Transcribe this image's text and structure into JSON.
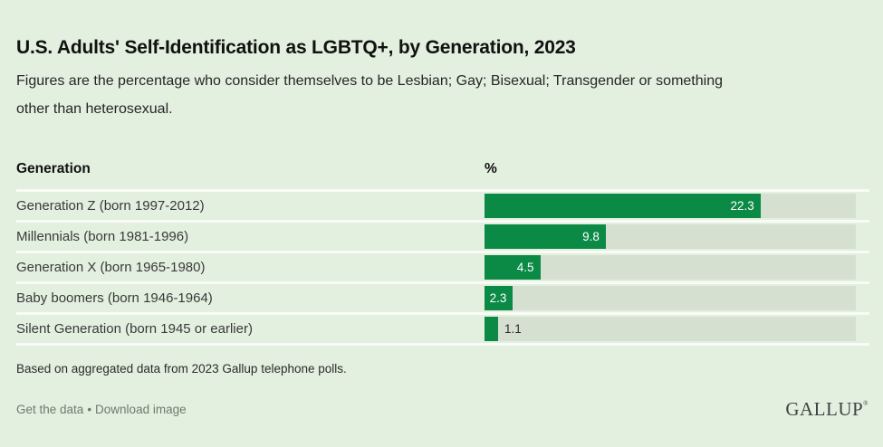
{
  "page": {
    "title": "U.S. Adults' Self-Identification as LGBTQ+, by Generation, 2023",
    "subtitle": {
      "full": "Figures are the percentage who consider themselves to be Lesbian; Gay; Bisexual; Transgender or something other than heterosexual.",
      "line1": "Figures are the percentage who consider themselves to be Lesbian; Gay; Bisexual; Transgender or something",
      "line2": "other than heterosexual."
    },
    "footnote": "Based on aggregated data from 2023 Gallup telephone polls.",
    "links": {
      "get_data": "Get the data",
      "separator": "•",
      "download_image": "Download image"
    },
    "logo": "GALLUP",
    "logo_mark": "®"
  },
  "chart_data": {
    "type": "bar",
    "orientation": "horizontal",
    "title": "U.S. Adults' Self-Identification as LGBTQ+, by Generation, 2023",
    "col_headers": {
      "category": "Generation",
      "value": "%"
    },
    "categories": [
      "Generation Z (born 1997-2012)",
      "Millennials (born 1981-1996)",
      "Generation X (born 1965-1980)",
      "Baby boomers (born 1946-1964)",
      "Silent Generation (born 1945 or earlier)"
    ],
    "values": [
      22.3,
      9.8,
      4.5,
      2.3,
      1.1
    ],
    "unit": "%",
    "xlim": [
      0,
      30
    ],
    "grid": false,
    "legend": false,
    "colors": {
      "bar": "#0b8a46",
      "track": "#d5e0d0",
      "background": "#e3efdf",
      "separator": "#f9fcf6"
    },
    "rows": [
      {
        "label": "Generation Z (born 1997-2012)",
        "value": 22.3,
        "display": "22.3",
        "label_inside": true
      },
      {
        "label": "Millennials (born 1981-1996)",
        "value": 9.8,
        "display": "9.8",
        "label_inside": true
      },
      {
        "label": "Generation X (born 1965-1980)",
        "value": 4.5,
        "display": "4.5",
        "label_inside": true
      },
      {
        "label": "Baby boomers (born 1946-1964)",
        "value": 2.3,
        "display": "2.3",
        "label_inside": true
      },
      {
        "label": "Silent Generation (born 1945 or earlier)",
        "value": 1.1,
        "display": "1.1",
        "label_inside": false
      }
    ]
  }
}
